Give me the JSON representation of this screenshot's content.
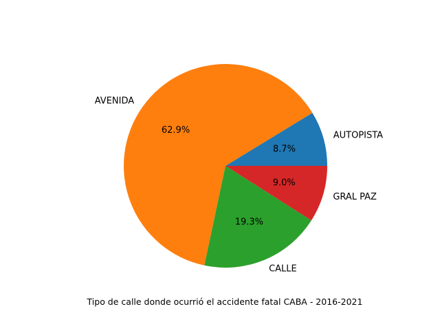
{
  "chart_data": {
    "type": "pie",
    "categories": [
      "AUTOPISTA",
      "AVENIDA",
      "CALLE",
      "GRAL PAZ"
    ],
    "values": [
      8.7,
      62.9,
      19.3,
      9.0
    ],
    "value_labels": [
      "8.7%",
      "62.9%",
      "19.3%",
      "9.0%"
    ],
    "colors": [
      "#1f77b4",
      "#ff7f0e",
      "#2ca02c",
      "#d62728"
    ],
    "start_angle_deg": 0,
    "direction": "counterclockwise",
    "xlabel": "Tipo de calle donde ocurrió el accidente fatal CABA - 2016-2021",
    "title": "",
    "legend": "none"
  }
}
